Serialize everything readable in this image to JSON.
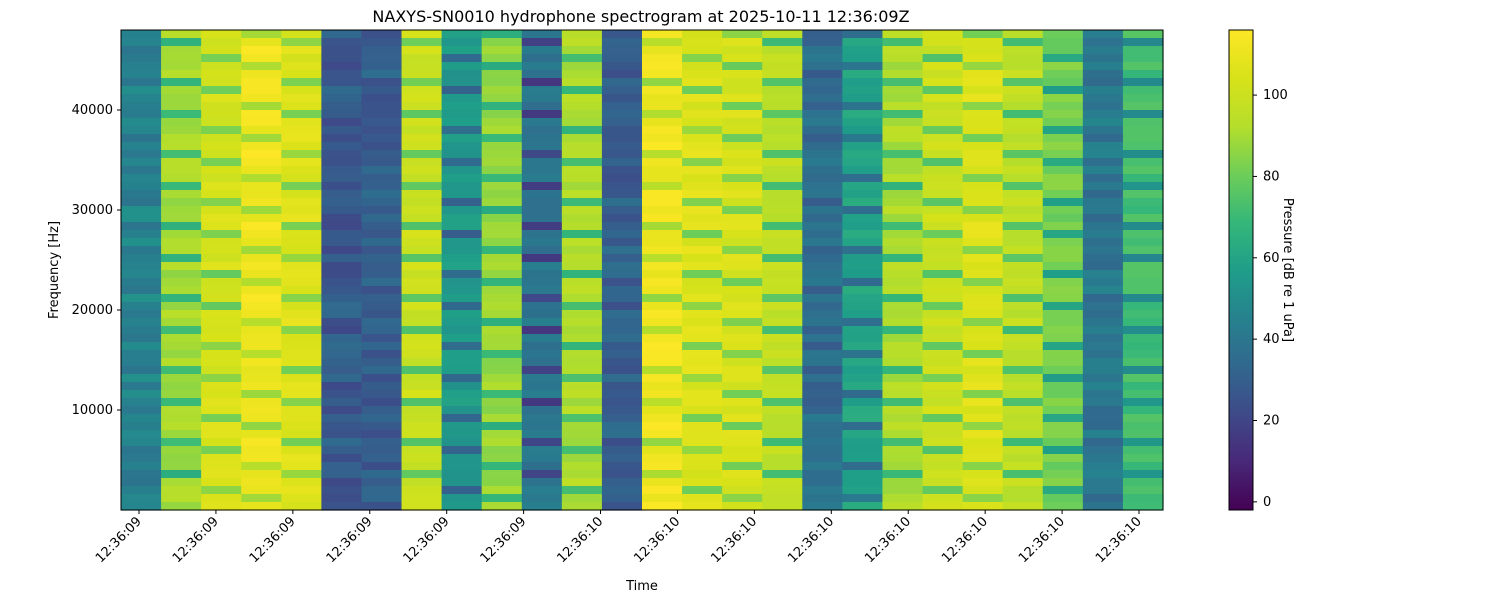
{
  "chart_data": {
    "type": "heatmap",
    "title": "NAXYS-SN0010 hydrophone spectrogram at 2025-10-11 12:36:09Z",
    "xlabel": "Time",
    "ylabel": "Frequency [Hz]",
    "x_tick_labels": [
      "12:36:09",
      "12:36:09",
      "12:36:09",
      "12:36:09",
      "12:36:09",
      "12:36:09",
      "12:36:10",
      "12:36:10",
      "12:36:10",
      "12:36:10",
      "12:36:10",
      "12:36:10",
      "12:36:10",
      "12:36:10"
    ],
    "y_ticks": [
      10000,
      20000,
      30000,
      40000
    ],
    "ylim": [
      0,
      48000
    ],
    "colormap": "viridis",
    "colorbar": {
      "label": "Pressure [dB re 1 uPa]",
      "ticks": [
        0,
        20,
        40,
        60,
        80,
        100
      ],
      "range": [
        -2,
        116
      ]
    },
    "time_segments": [
      {
        "level": 45,
        "texture": "noisy"
      },
      {
        "level": 90,
        "texture": "band"
      },
      {
        "level": 104,
        "texture": "band"
      },
      {
        "level": 112,
        "texture": "band"
      },
      {
        "level": 106,
        "texture": "band"
      },
      {
        "level": 28,
        "texture": "noisy"
      },
      {
        "level": 30,
        "texture": "noisy"
      },
      {
        "level": 100,
        "texture": "band"
      },
      {
        "level": 55,
        "texture": "band"
      },
      {
        "level": 88,
        "texture": "band"
      },
      {
        "level": 40,
        "texture": "band"
      },
      {
        "level": 92,
        "texture": "band"
      },
      {
        "level": 30,
        "texture": "noisy"
      },
      {
        "level": 112,
        "texture": "band"
      },
      {
        "level": 106,
        "texture": "band"
      },
      {
        "level": 104,
        "texture": "band"
      },
      {
        "level": 96,
        "texture": "band"
      },
      {
        "level": 35,
        "texture": "noisy"
      },
      {
        "level": 60,
        "texture": "band"
      },
      {
        "level": 92,
        "texture": "band"
      },
      {
        "level": 100,
        "texture": "band"
      },
      {
        "level": 106,
        "texture": "band"
      },
      {
        "level": 96,
        "texture": "band"
      },
      {
        "level": 82,
        "texture": "band"
      },
      {
        "level": 40,
        "texture": "noisy"
      },
      {
        "level": 72,
        "texture": "band"
      }
    ]
  }
}
